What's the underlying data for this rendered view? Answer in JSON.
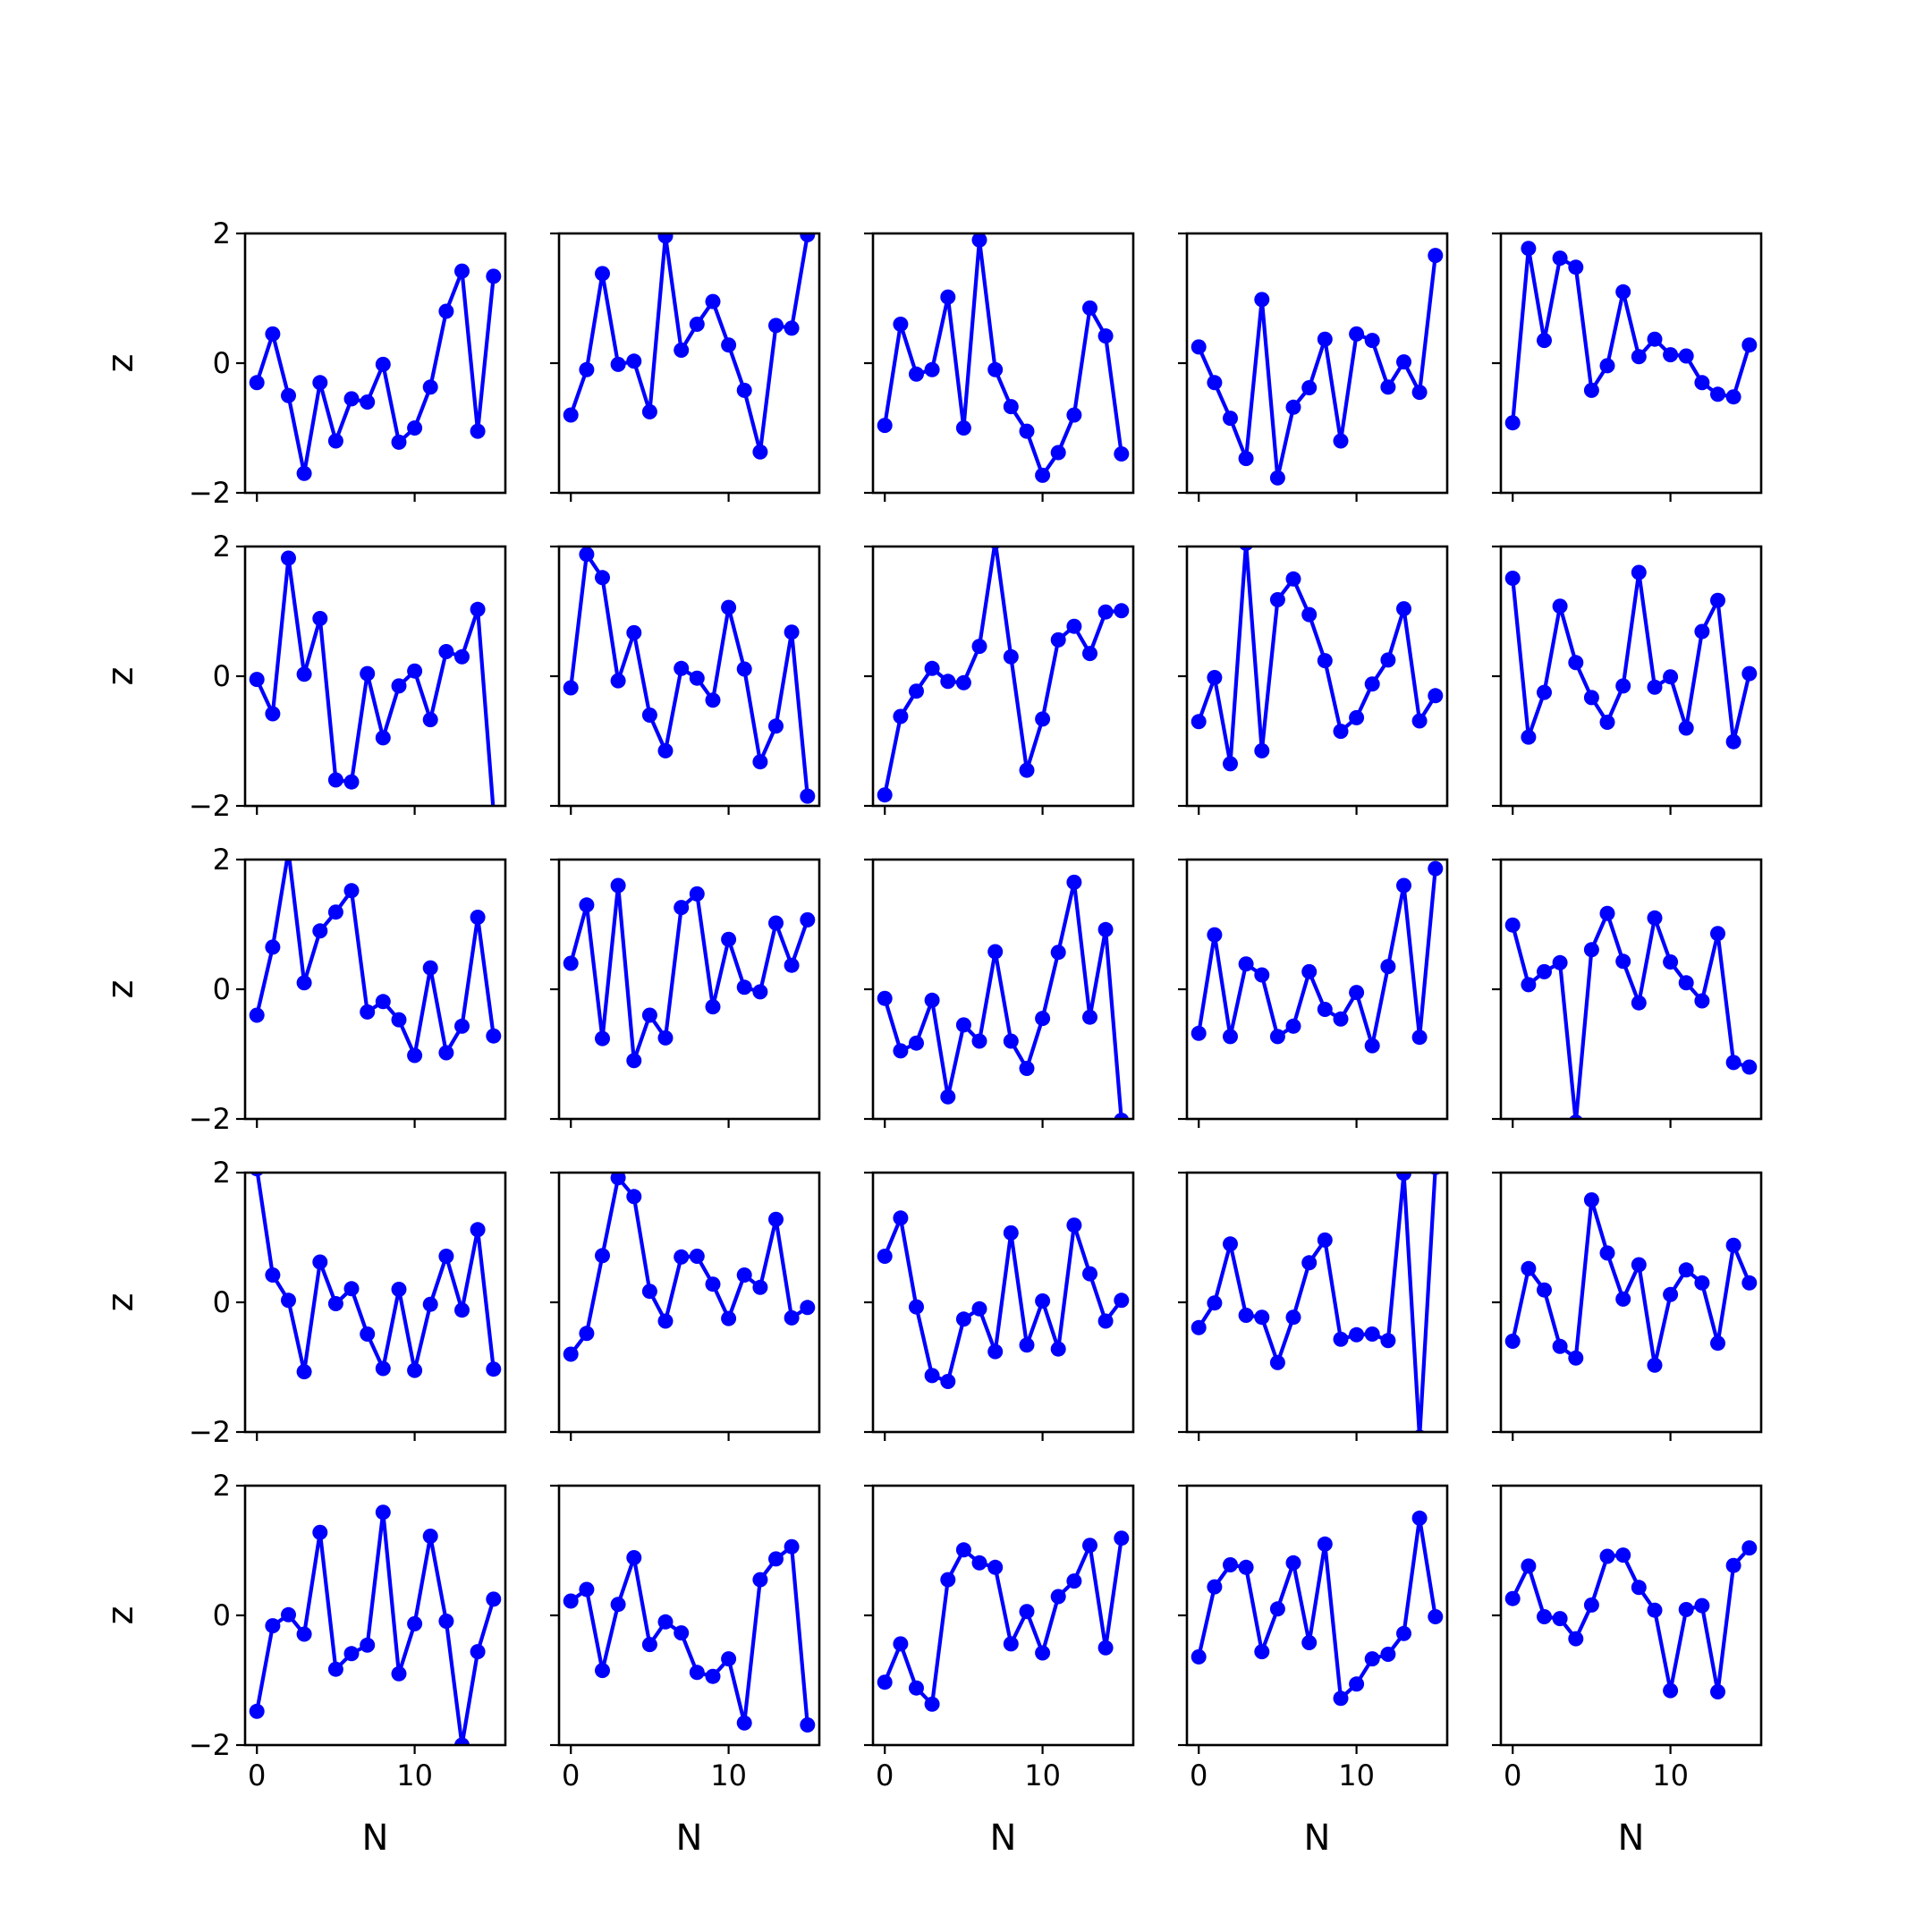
{
  "figure": {
    "line_color": "#0000ff",
    "axis_color": "#000000",
    "background": "#ffffff"
  },
  "chart_data": {
    "type": "line",
    "layout": "5x5 grid of small-multiple line plots with circular markers; shared x and y axes",
    "xlabel": "N",
    "ylabel": "z",
    "xlim": [
      -0.75,
      15.75
    ],
    "ylim": [
      -2,
      2
    ],
    "x_ticks": [
      0,
      10
    ],
    "x_tick_labels": [
      "0",
      "10"
    ],
    "y_ticks": [
      -2,
      0,
      2
    ],
    "y_tick_labels": [
      "−2",
      "0",
      "2"
    ],
    "x": [
      0,
      1,
      2,
      3,
      4,
      5,
      6,
      7,
      8,
      9,
      10,
      11,
      12,
      13,
      14,
      15
    ],
    "panels": [
      {
        "row": 1,
        "col": 1,
        "values": [
          -0.3,
          0.45,
          -0.5,
          -1.7,
          -0.3,
          -1.2,
          -0.55,
          -0.6,
          -0.02,
          -1.22,
          -1.0,
          -0.37,
          0.8,
          1.42,
          -1.05,
          1.34
        ]
      },
      {
        "row": 1,
        "col": 2,
        "values": [
          -0.8,
          -0.1,
          1.38,
          -0.02,
          0.03,
          -0.75,
          1.96,
          0.2,
          0.6,
          0.95,
          0.28,
          -0.42,
          -1.37,
          0.58,
          0.54,
          1.98
        ]
      },
      {
        "row": 1,
        "col": 3,
        "values": [
          -0.96,
          0.6,
          -0.17,
          -0.1,
          1.02,
          -1.0,
          1.9,
          -0.1,
          -0.67,
          -1.05,
          -1.73,
          -1.38,
          -0.8,
          0.85,
          0.42,
          -1.4
        ]
      },
      {
        "row": 1,
        "col": 4,
        "values": [
          0.25,
          -0.3,
          -0.85,
          -1.47,
          0.98,
          -1.77,
          -0.68,
          -0.38,
          0.37,
          -1.2,
          0.45,
          0.35,
          -0.37,
          0.02,
          -0.45,
          1.66
        ]
      },
      {
        "row": 1,
        "col": 5,
        "values": [
          -0.92,
          1.77,
          0.35,
          1.62,
          1.48,
          -0.42,
          -0.04,
          1.1,
          0.1,
          0.37,
          0.13,
          0.11,
          -0.3,
          -0.48,
          -0.52,
          0.28
        ]
      },
      {
        "row": 2,
        "col": 1,
        "values": [
          -0.05,
          -0.58,
          1.82,
          0.03,
          0.89,
          -1.6,
          -1.63,
          0.04,
          -0.95,
          -0.15,
          0.08,
          -0.67,
          0.38,
          0.3,
          1.03,
          -2.1
        ]
      },
      {
        "row": 2,
        "col": 2,
        "values": [
          -0.18,
          1.88,
          1.52,
          -0.07,
          0.67,
          -0.6,
          -1.15,
          0.12,
          -0.03,
          -0.37,
          1.06,
          0.11,
          -1.32,
          -0.77,
          0.68,
          -1.85
        ]
      },
      {
        "row": 2,
        "col": 3,
        "values": [
          -1.83,
          -0.62,
          -0.23,
          0.12,
          -0.08,
          -0.1,
          0.46,
          2.08,
          0.3,
          -1.45,
          -0.66,
          0.56,
          0.77,
          0.35,
          0.99,
          1.01
        ]
      },
      {
        "row": 2,
        "col": 4,
        "values": [
          -0.7,
          -0.02,
          -1.35,
          2.05,
          -1.15,
          1.18,
          1.5,
          0.95,
          0.24,
          -0.85,
          -0.64,
          -0.12,
          0.25,
          1.04,
          -0.69,
          -0.3
        ]
      },
      {
        "row": 2,
        "col": 5,
        "values": [
          1.51,
          -0.94,
          -0.25,
          1.08,
          0.21,
          -0.33,
          -0.71,
          -0.15,
          1.6,
          -0.17,
          -0.01,
          -0.8,
          0.69,
          1.17,
          -1.01,
          0.04
        ]
      },
      {
        "row": 3,
        "col": 1,
        "values": [
          -0.4,
          0.65,
          2.13,
          0.1,
          0.9,
          1.19,
          1.52,
          -0.35,
          -0.19,
          -0.47,
          -1.02,
          0.33,
          -0.98,
          -0.57,
          1.11,
          -0.72
        ]
      },
      {
        "row": 3,
        "col": 2,
        "values": [
          0.4,
          1.3,
          -0.76,
          1.6,
          -1.1,
          -0.4,
          -0.75,
          1.26,
          1.47,
          -0.27,
          0.77,
          0.03,
          -0.04,
          1.02,
          0.37,
          1.07
        ]
      },
      {
        "row": 3,
        "col": 3,
        "values": [
          -0.14,
          -0.95,
          -0.83,
          -0.17,
          -1.66,
          -0.55,
          -0.8,
          0.58,
          -0.8,
          -1.22,
          -0.45,
          0.57,
          1.65,
          -0.43,
          0.92,
          -2.02
        ]
      },
      {
        "row": 3,
        "col": 4,
        "values": [
          -0.68,
          0.84,
          -0.73,
          0.39,
          0.22,
          -0.73,
          -0.57,
          0.27,
          -0.31,
          -0.46,
          -0.05,
          -0.87,
          0.35,
          1.6,
          -0.74,
          1.86
        ]
      },
      {
        "row": 3,
        "col": 5,
        "values": [
          0.99,
          0.07,
          0.27,
          0.41,
          -2.05,
          0.61,
          1.17,
          0.43,
          -0.21,
          1.1,
          0.42,
          0.1,
          -0.18,
          0.86,
          -1.13,
          -1.2
        ]
      },
      {
        "row": 4,
        "col": 1,
        "values": [
          2.06,
          0.42,
          0.03,
          -1.07,
          0.62,
          -0.02,
          0.21,
          -0.49,
          -1.02,
          0.2,
          -1.05,
          -0.03,
          0.71,
          -0.12,
          1.12,
          -1.03
        ]
      },
      {
        "row": 4,
        "col": 2,
        "values": [
          -0.8,
          -0.48,
          0.72,
          1.92,
          1.63,
          0.17,
          -0.29,
          0.7,
          0.71,
          0.28,
          -0.25,
          0.42,
          0.23,
          1.28,
          -0.24,
          -0.08
        ]
      },
      {
        "row": 4,
        "col": 3,
        "values": [
          0.71,
          1.3,
          -0.07,
          -1.13,
          -1.22,
          -0.26,
          -0.1,
          -0.76,
          1.07,
          -0.66,
          0.02,
          -0.72,
          1.19,
          0.44,
          -0.29,
          0.03
        ]
      },
      {
        "row": 4,
        "col": 4,
        "values": [
          -0.39,
          -0.01,
          0.9,
          -0.2,
          -0.23,
          -0.93,
          -0.23,
          0.61,
          0.96,
          -0.57,
          -0.5,
          -0.49,
          -0.59,
          1.99,
          -2.08,
          2.08
        ]
      },
      {
        "row": 4,
        "col": 5,
        "values": [
          -0.6,
          0.52,
          0.19,
          -0.68,
          -0.86,
          1.58,
          0.76,
          0.05,
          0.58,
          -0.97,
          0.12,
          0.5,
          0.3,
          -0.63,
          0.88,
          0.3
        ]
      },
      {
        "row": 5,
        "col": 1,
        "values": [
          -1.48,
          -0.16,
          0.01,
          -0.29,
          1.28,
          -0.83,
          -0.59,
          -0.46,
          1.59,
          -0.9,
          -0.13,
          1.22,
          -0.09,
          -2.0,
          -0.56,
          0.25
        ]
      },
      {
        "row": 5,
        "col": 2,
        "values": [
          0.22,
          0.4,
          -0.85,
          0.17,
          0.89,
          -0.45,
          -0.1,
          -0.27,
          -0.88,
          -0.94,
          -0.67,
          -1.66,
          0.55,
          0.87,
          1.06,
          -1.69
        ]
      },
      {
        "row": 5,
        "col": 3,
        "values": [
          -1.03,
          -0.44,
          -1.12,
          -1.37,
          0.55,
          1.01,
          0.81,
          0.74,
          -0.44,
          0.06,
          -0.58,
          0.29,
          0.53,
          1.08,
          -0.5,
          1.19
        ]
      },
      {
        "row": 5,
        "col": 4,
        "values": [
          -0.64,
          0.44,
          0.78,
          0.74,
          -0.56,
          0.1,
          0.81,
          -0.42,
          1.1,
          -1.28,
          -1.06,
          -0.67,
          -0.6,
          -0.28,
          1.5,
          -0.02
        ]
      },
      {
        "row": 5,
        "col": 5,
        "values": [
          0.26,
          0.76,
          -0.02,
          -0.05,
          -0.36,
          0.16,
          0.91,
          0.93,
          0.43,
          0.08,
          -1.16,
          0.09,
          0.15,
          -1.18,
          0.77,
          1.04
        ]
      }
    ]
  }
}
